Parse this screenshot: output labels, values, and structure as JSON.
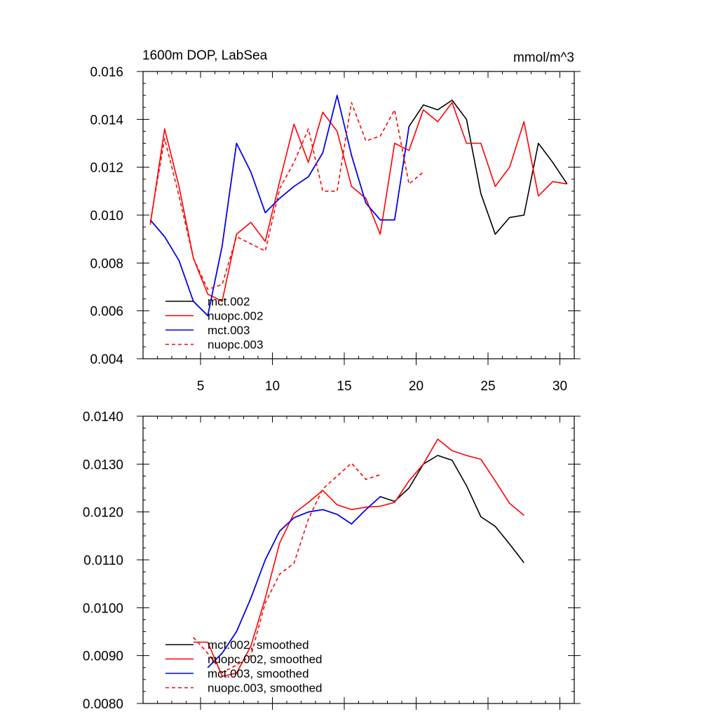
{
  "chart_data": [
    {
      "type": "line",
      "title_left": "1600m DOP, LabSea",
      "title_right": "mmol/m^3",
      "xlabel": "",
      "ylabel": "",
      "xlim": [
        1,
        31
      ],
      "ylim": [
        0.004,
        0.016
      ],
      "x_ticks": [
        5,
        10,
        15,
        20,
        25,
        30
      ],
      "x_tick_labels": [
        "5",
        "10",
        "15",
        "20",
        "25",
        "30"
      ],
      "y_ticks": [
        0.004,
        0.006,
        0.008,
        0.01,
        0.012,
        0.014,
        0.016
      ],
      "y_tick_labels": [
        "0.004",
        "0.006",
        "0.008",
        "0.010",
        "0.012",
        "0.014",
        "0.016"
      ],
      "legend_position": "bottom-left",
      "series": [
        {
          "name": "mct.002",
          "color": "#000000",
          "dash": false,
          "x": [
            1.5,
            2.5,
            3.5,
            4.5,
            5.5,
            6.5,
            7.5,
            8.5,
            9.5,
            10.5,
            11.5,
            12.5,
            13.5,
            14.5,
            15.5,
            16.5,
            17.5,
            18.5,
            19.5,
            20.5,
            21.5,
            22.5,
            23.5,
            24.5,
            25.5,
            26.5,
            27.5,
            28.5,
            29.5,
            30.5
          ],
          "values": [
            0.0098,
            0.0091,
            0.0081,
            0.0064,
            0.0058,
            0.0087,
            0.013,
            0.0118,
            0.0101,
            0.0107,
            0.0112,
            0.0116,
            0.0126,
            0.015,
            0.0125,
            0.0105,
            0.0098,
            0.0098,
            0.0137,
            0.0146,
            0.0144,
            0.0148,
            0.014,
            0.0109,
            0.0092,
            0.0099,
            0.01,
            0.013,
            0.0122,
            0.0113
          ]
        },
        {
          "name": "nuopc.002",
          "color": "#ff0000",
          "dash": false,
          "x": [
            1.5,
            2.5,
            3.5,
            4.5,
            5.5,
            6.5,
            7.5,
            8.5,
            9.5,
            10.5,
            11.5,
            12.5,
            13.5,
            14.5,
            15.5,
            16.5,
            17.5,
            18.5,
            19.5,
            20.5,
            21.5,
            22.5,
            23.5,
            24.5,
            25.5,
            26.5,
            27.5,
            28.5,
            29.5,
            30.5
          ],
          "values": [
            0.0096,
            0.0136,
            0.0112,
            0.0082,
            0.0067,
            0.0064,
            0.0092,
            0.0097,
            0.0089,
            0.0114,
            0.0138,
            0.0122,
            0.0143,
            0.0135,
            0.0112,
            0.0107,
            0.0092,
            0.013,
            0.0127,
            0.0144,
            0.0139,
            0.0147,
            0.013,
            0.013,
            0.0112,
            0.012,
            0.0139,
            0.0108,
            0.0114,
            0.0113
          ]
        },
        {
          "name": "mct.003",
          "color": "#0000ff",
          "dash": false,
          "x": [
            1.5,
            2.5,
            3.5,
            4.5,
            5.5,
            6.5,
            7.5,
            8.5,
            9.5,
            10.5,
            11.5,
            12.5,
            13.5,
            14.5,
            15.5,
            16.5,
            17.5,
            18.5,
            19.5
          ],
          "values": [
            0.0098,
            0.0091,
            0.0081,
            0.0064,
            0.0058,
            0.0087,
            0.013,
            0.0118,
            0.0101,
            0.0107,
            0.0112,
            0.0116,
            0.0126,
            0.015,
            0.0125,
            0.0105,
            0.0098,
            0.0098,
            0.0137
          ]
        },
        {
          "name": "nuopc.003",
          "color": "#ff0000",
          "dash": true,
          "x": [
            1.5,
            2.5,
            3.5,
            4.5,
            5.5,
            6.5,
            7.5,
            8.5,
            9.5,
            10.5,
            11.5,
            12.5,
            13.5,
            14.5,
            15.5,
            16.5,
            17.5,
            18.5,
            19.5,
            20.5
          ],
          "values": [
            0.0097,
            0.0132,
            0.0108,
            0.0082,
            0.0069,
            0.0071,
            0.0091,
            0.0088,
            0.0085,
            0.0111,
            0.0122,
            0.0136,
            0.011,
            0.011,
            0.0147,
            0.0131,
            0.0133,
            0.0144,
            0.0113,
            0.0118
          ]
        }
      ]
    },
    {
      "type": "line",
      "title_left": "",
      "title_right": "",
      "xlabel": "",
      "ylabel": "",
      "xlim": [
        1,
        31
      ],
      "ylim": [
        0.008,
        0.014
      ],
      "x_ticks": [
        5,
        10,
        15,
        20,
        25,
        30
      ],
      "x_tick_labels": [],
      "y_ticks": [
        0.008,
        0.009,
        0.01,
        0.011,
        0.012,
        0.013,
        0.014
      ],
      "y_tick_labels": [
        "0.0080",
        "0.0090",
        "0.0100",
        "0.0110",
        "0.0120",
        "0.0130",
        "0.0140"
      ],
      "legend_position": "bottom-left",
      "series": [
        {
          "name": "mct.002, smoothed",
          "color": "#000000",
          "dash": false,
          "x": [
            5.5,
            6.5,
            7.5,
            8.5,
            9.5,
            10.5,
            11.5,
            12.5,
            13.5,
            14.5,
            15.5,
            16.5,
            17.5,
            18.5,
            19.5,
            20.5,
            21.5,
            22.5,
            23.5,
            24.5,
            25.5,
            26.5,
            27.5
          ],
          "values": [
            0.00875,
            0.00905,
            0.0095,
            0.0102,
            0.011,
            0.0116,
            0.01188,
            0.012,
            0.01205,
            0.01195,
            0.01175,
            0.01205,
            0.01232,
            0.01222,
            0.0125,
            0.013,
            0.01318,
            0.01308,
            0.01255,
            0.0119,
            0.0117,
            0.01133,
            0.01094
          ]
        },
        {
          "name": "nuopc.002, smoothed",
          "color": "#ff0000",
          "dash": false,
          "x": [
            4.5,
            5.5,
            6.5,
            7.5,
            8.5,
            9.5,
            10.5,
            11.5,
            12.5,
            13.5,
            14.5,
            15.5,
            16.5,
            17.5,
            18.5,
            19.5,
            20.5,
            21.5,
            22.5,
            23.5,
            24.5,
            25.5,
            26.5,
            27.5
          ],
          "values": [
            0.00928,
            0.00928,
            0.00857,
            0.00863,
            0.0092,
            0.0102,
            0.01135,
            0.01197,
            0.0122,
            0.01245,
            0.01215,
            0.01205,
            0.0121,
            0.01212,
            0.0122,
            0.01265,
            0.013,
            0.01352,
            0.01328,
            0.01318,
            0.0131,
            0.01265,
            0.01218,
            0.01193
          ]
        },
        {
          "name": "mct.003, smoothed",
          "color": "#0000ff",
          "dash": false,
          "x": [
            5.5,
            6.5,
            7.5,
            8.5,
            9.5,
            10.5,
            11.5,
            12.5,
            13.5,
            14.5,
            15.5,
            16.5,
            17.5
          ],
          "values": [
            0.00875,
            0.00905,
            0.0095,
            0.0102,
            0.011,
            0.0116,
            0.01188,
            0.012,
            0.01205,
            0.01195,
            0.01175,
            0.01205,
            0.01232
          ]
        },
        {
          "name": "nuopc.003, smoothed",
          "color": "#ff0000",
          "dash": true,
          "x": [
            4.5,
            5.5,
            6.5,
            7.5,
            8.5,
            9.5,
            10.5,
            11.5,
            12.5,
            13.5,
            14.5,
            15.5,
            16.5,
            17.5
          ],
          "values": [
            0.00938,
            0.00905,
            0.00865,
            0.0088,
            0.009,
            0.0101,
            0.0107,
            0.01093,
            0.01185,
            0.01248,
            0.01275,
            0.01302,
            0.01268,
            0.01278
          ]
        }
      ]
    }
  ]
}
